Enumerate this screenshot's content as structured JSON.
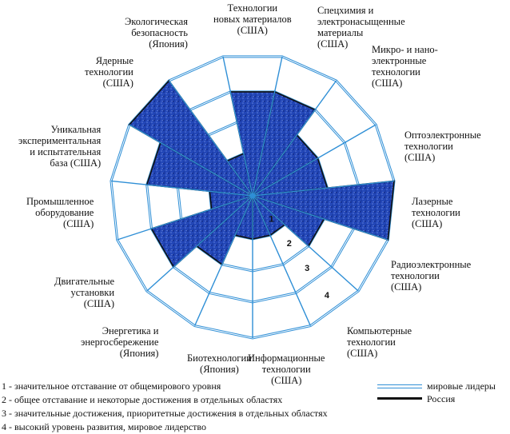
{
  "axes": [
    {
      "label": "Спецхимия и электронасыщенные материалы (США)",
      "lines": [
        "Спецхимия и",
        "электронасыщенные",
        "материалы",
        "(США)"
      ],
      "level": 3
    },
    {
      "label": "Микро- и нано- электронные технологии (США)",
      "lines": [
        "Микро- и нано-",
        "электронные",
        "технологии",
        "(США)"
      ],
      "level": 2
    },
    {
      "label": "Оптоэлектронные технологии (США)",
      "lines": [
        "Оптоэлектронные",
        "технологии",
        "(США)"
      ],
      "level": 2
    },
    {
      "label": "Лазерные технологии (США)",
      "lines": [
        "Лазерные",
        "технологии",
        "(США)"
      ],
      "level": 4
    },
    {
      "label": "Радиоэлектронные технологии (США)",
      "lines": [
        "Радиоэлектронные",
        "технологии",
        "(США)"
      ],
      "level": 2
    },
    {
      "label": "Компьютерные технологии (США)",
      "lines": [
        "Компьютерные",
        "технологии",
        "(США)"
      ],
      "level": 1
    },
    {
      "label": "Информационные технологии (США)",
      "lines": [
        "Информационные",
        "технологии",
        "(США)"
      ],
      "level": 1
    },
    {
      "label": "Биотехнологии (Япония)",
      "lines": [
        "Биотехнологии",
        "(Япония)"
      ],
      "level": 1
    },
    {
      "label": "Энергетика и энергосбережение (Япония)",
      "lines": [
        "Энергетика и",
        "энергосбережение",
        "(Япония)"
      ],
      "level": 2
    },
    {
      "label": "Двигательные установки (США)",
      "lines": [
        "Двигательные",
        "установки",
        "(США)"
      ],
      "level": 3
    },
    {
      "label": "Промышленное оборудование (США)",
      "lines": [
        "Промышленное",
        "оборудование",
        "(США)"
      ],
      "level": 1
    },
    {
      "label": "Уникальная экспериментальная и испытательная база (США)",
      "lines": [
        "Уникальная",
        "экспериментальная",
        "и испытательная",
        "база (США)"
      ],
      "level": 3
    },
    {
      "label": "Ядерные технологии (США)",
      "lines": [
        "Ядерные",
        "технологии",
        "(США)"
      ],
      "level": 4
    },
    {
      "label": "Экологическая безопасность (Япония)",
      "lines": [
        "Экологическая",
        "безопасность",
        "(Япония)"
      ],
      "level": 1
    },
    {
      "label": "Технологии новых материалов (США)",
      "lines": [
        "Технологии",
        "новых материалов",
        "(США)"
      ],
      "level": 3
    }
  ],
  "ring_labels": [
    "1",
    "2",
    "3",
    "4"
  ],
  "scale_legend": [
    "1 - значительное отставание от общемирового уровня",
    "2 - общее отставание и некоторые достижения в отдельных областях",
    "3 - значительные достижения, приоритетные достижения в отдельных областях",
    "4 - высокий уровень развития, мировое лидерство"
  ],
  "line_key": {
    "world_leaders": "мировые лидеры",
    "russia": "Россия"
  },
  "colors": {
    "grid": "#2f8fd6",
    "fill": "#1f45b5",
    "outline": "#111111"
  }
}
